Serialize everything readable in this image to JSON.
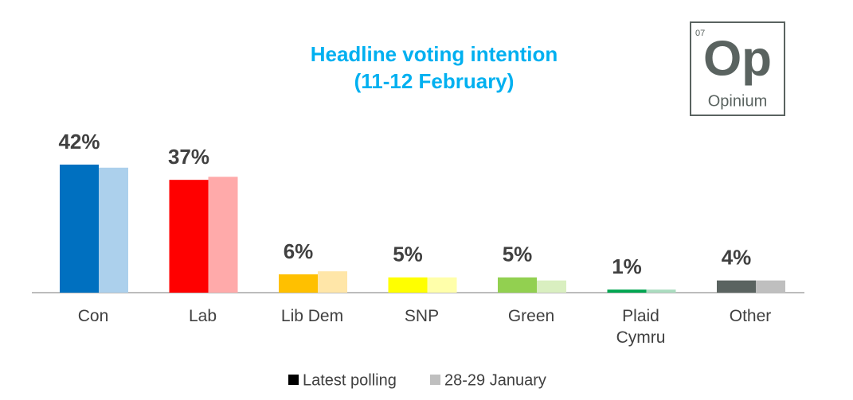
{
  "chart_data": {
    "type": "bar",
    "title": "Headline voting intention",
    "subtitle": "(11-12 February)",
    "categories": [
      "Con",
      "Lab",
      "Lib Dem",
      "SNP",
      "Green",
      "Plaid Cymru",
      "Other"
    ],
    "series": [
      {
        "name": "Latest polling",
        "color": "#000000",
        "values": [
          42,
          37,
          6,
          5,
          5,
          1,
          4
        ],
        "value_labels": [
          "42%",
          "37%",
          "6%",
          "5%",
          "5%",
          "1%",
          "4%"
        ],
        "point_colors": [
          "#0070c0",
          "#ff0000",
          "#ffc000",
          "#ffff00",
          "#92d050",
          "#00a550",
          "#5a6360"
        ]
      },
      {
        "name": "28-29 January",
        "color": "#bfbfbf",
        "values": [
          41,
          38,
          7,
          5,
          4,
          1,
          4
        ],
        "point_colors": [
          "#acd0ec",
          "#ffaaaa",
          "#ffe6a8",
          "#ffffaa",
          "#d9efc0",
          "#aadcbf",
          "#bfbfbf"
        ]
      }
    ]
  },
  "logo": {
    "number": "07",
    "symbol": "Op",
    "name": "Opinium"
  }
}
